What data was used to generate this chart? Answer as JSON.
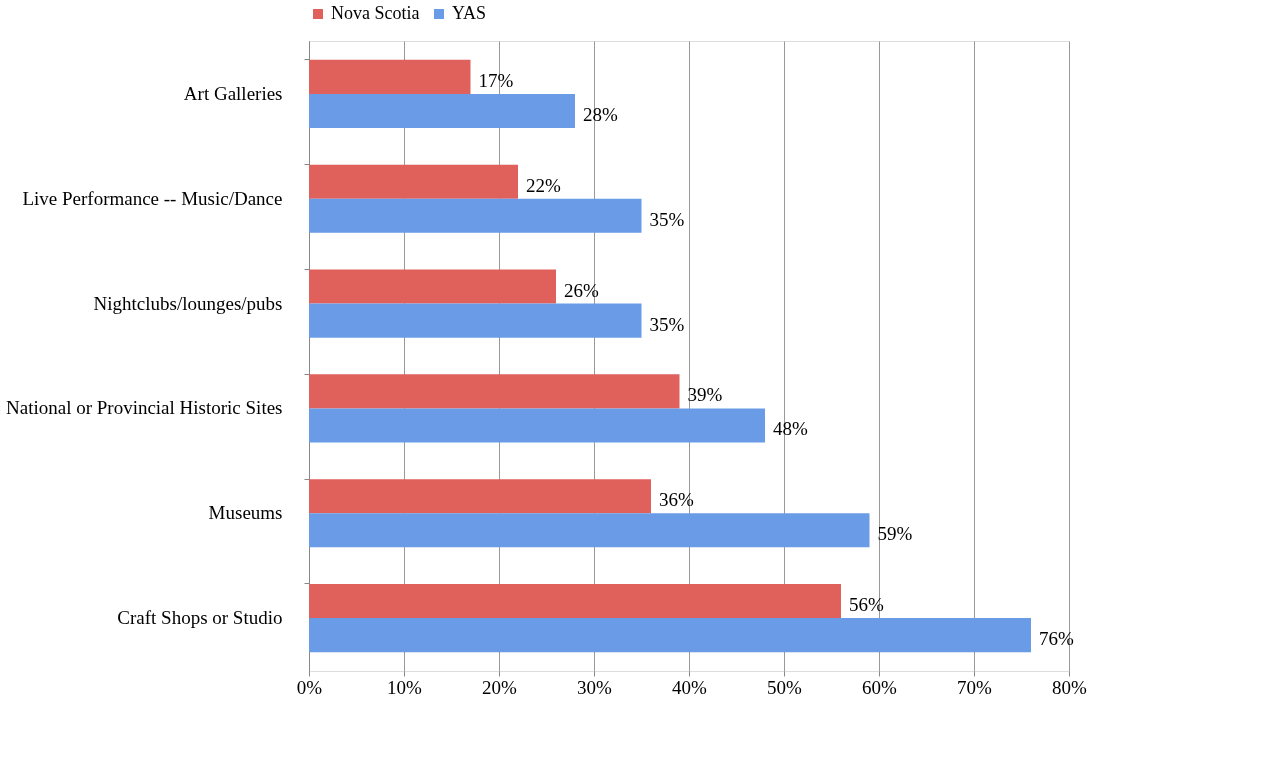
{
  "chart_data": {
    "type": "bar",
    "orientation": "horizontal",
    "categories": [
      "Art Galleries",
      "Live Performance -- Music/Dance",
      "Nightclubs/lounges/pubs",
      "National or Provincial Historic Sites",
      "Museums",
      "Craft Shops or Studio"
    ],
    "series": [
      {
        "name": "Nova Scotia",
        "color": "#e0605c",
        "values": [
          17,
          22,
          26,
          39,
          36,
          56
        ],
        "value_labels": [
          "17%",
          "22%",
          "26%",
          "39%",
          "36%",
          "56%"
        ]
      },
      {
        "name": "YAS",
        "color": "#6a9be6",
        "values": [
          28,
          35,
          35,
          48,
          59,
          76
        ],
        "value_labels": [
          "28%",
          "35%",
          "35%",
          "48%",
          "59%",
          "76%"
        ]
      }
    ],
    "xlim": [
      0,
      80
    ],
    "xticks": [
      {
        "value": 0,
        "label": "0%"
      },
      {
        "value": 10,
        "label": "10%"
      },
      {
        "value": 20,
        "label": "20%"
      },
      {
        "value": 30,
        "label": "30%"
      },
      {
        "value": 40,
        "label": "40%"
      },
      {
        "value": 50,
        "label": "50%"
      },
      {
        "value": 60,
        "label": "60%"
      },
      {
        "value": 70,
        "label": "70%"
      },
      {
        "value": 80,
        "label": "80%"
      }
    ],
    "grid": "x",
    "legend": "top"
  }
}
